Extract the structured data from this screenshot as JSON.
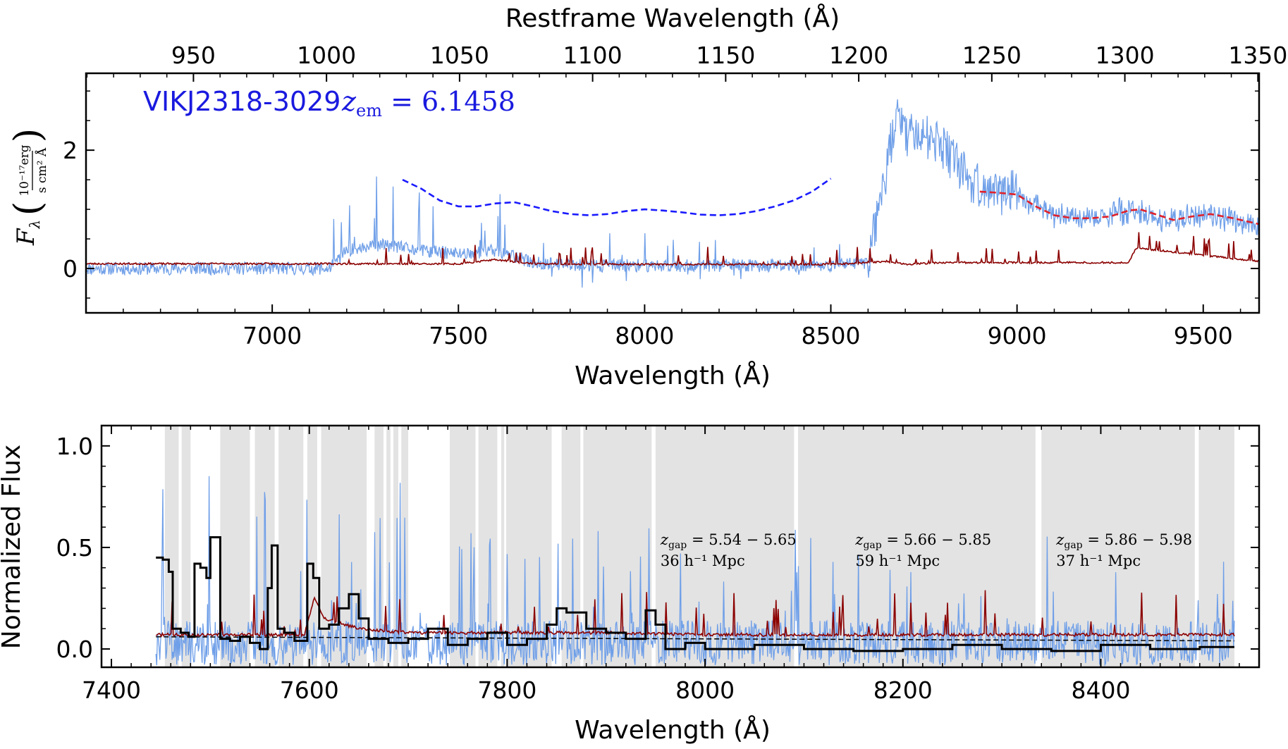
{
  "colors": {
    "flux": "#6f9fe8",
    "error": "#8b0000",
    "fit_blue": "#1a1aff",
    "fit_red": "#e0202a",
    "binned": "#000000",
    "gap_shade": "#e3e3e3",
    "title_color": "#1a1adf"
  },
  "chart_data": [
    {
      "type": "line",
      "title_object": "VIKJ2318-3029",
      "title_redshift": "z_em = 6.1458",
      "title_redshift_var": "z",
      "title_redshift_sub": "em",
      "title_redshift_value": " = 6.1458",
      "xlabel": "Wavelength (Å)",
      "xlabel_top": "Restframe Wavelength (Å)",
      "ylabel_var": "F",
      "ylabel_sub": "λ",
      "ylabel_num": "10⁻¹⁷erg",
      "ylabel_den": "s cm² Å",
      "xlim": [
        6500,
        9650
      ],
      "ylim": [
        -0.75,
        3.3
      ],
      "redshift": 6.1458,
      "x_ticks": [
        7000,
        7500,
        8000,
        8500,
        9000,
        9500
      ],
      "x_top_ticks": [
        950,
        1000,
        1050,
        1100,
        1150,
        1200,
        1250,
        1300,
        1350
      ],
      "y_ticks": [
        0,
        2
      ],
      "series": [
        {
          "role": "flux",
          "points": [
            [
              6500,
              0.0
            ],
            [
              7150,
              0.0
            ],
            [
              7200,
              0.3
            ],
            [
              7300,
              0.4
            ],
            [
              7400,
              0.3
            ],
            [
              7500,
              0.25
            ],
            [
              7600,
              0.3
            ],
            [
              7700,
              0.1
            ],
            [
              7800,
              0.05
            ],
            [
              8000,
              0.05
            ],
            [
              8300,
              0.05
            ],
            [
              8500,
              0.05
            ],
            [
              8600,
              0.1
            ],
            [
              8640,
              1.4
            ],
            [
              8660,
              2.1
            ],
            [
              8680,
              2.6
            ],
            [
              8700,
              2.3
            ],
            [
              8750,
              2.3
            ],
            [
              8800,
              2.0
            ],
            [
              8850,
              1.7
            ],
            [
              8900,
              1.35
            ],
            [
              8950,
              1.3
            ],
            [
              9000,
              1.25
            ],
            [
              9050,
              1.05
            ],
            [
              9100,
              0.9
            ],
            [
              9150,
              0.85
            ],
            [
              9200,
              0.85
            ],
            [
              9250,
              0.9
            ],
            [
              9300,
              1.0
            ],
            [
              9350,
              0.9
            ],
            [
              9400,
              0.8
            ],
            [
              9500,
              0.9
            ],
            [
              9600,
              0.8
            ],
            [
              9650,
              0.75
            ]
          ]
        },
        {
          "role": "error",
          "points": [
            [
              6500,
              0.08
            ],
            [
              7000,
              0.08
            ],
            [
              7500,
              0.08
            ],
            [
              7600,
              0.15
            ],
            [
              7700,
              0.08
            ],
            [
              8000,
              0.07
            ],
            [
              8500,
              0.07
            ],
            [
              8650,
              0.12
            ],
            [
              8700,
              0.07
            ],
            [
              8800,
              0.1
            ],
            [
              9000,
              0.1
            ],
            [
              9300,
              0.1
            ],
            [
              9320,
              0.35
            ],
            [
              9650,
              0.12
            ]
          ]
        },
        {
          "role": "continuum_blue",
          "points": [
            [
              7350,
              1.5
            ],
            [
              7400,
              1.35
            ],
            [
              7450,
              1.15
            ],
            [
              7500,
              1.05
            ],
            [
              7550,
              1.05
            ],
            [
              7600,
              1.1
            ],
            [
              7650,
              1.12
            ],
            [
              7700,
              1.05
            ],
            [
              7750,
              0.97
            ],
            [
              7800,
              0.92
            ],
            [
              7850,
              0.9
            ],
            [
              7900,
              0.92
            ],
            [
              7950,
              0.97
            ],
            [
              8000,
              1.0
            ],
            [
              8050,
              0.98
            ],
            [
              8100,
              0.95
            ],
            [
              8150,
              0.91
            ],
            [
              8200,
              0.9
            ],
            [
              8250,
              0.92
            ],
            [
              8300,
              0.97
            ],
            [
              8350,
              1.05
            ],
            [
              8400,
              1.15
            ],
            [
              8450,
              1.3
            ],
            [
              8500,
              1.52
            ]
          ]
        },
        {
          "role": "continuum_red",
          "points": [
            [
              8900,
              1.3
            ],
            [
              8950,
              1.28
            ],
            [
              9000,
              1.25
            ],
            [
              9050,
              1.05
            ],
            [
              9100,
              0.9
            ],
            [
              9150,
              0.85
            ],
            [
              9200,
              0.85
            ],
            [
              9250,
              0.88
            ],
            [
              9300,
              0.98
            ],
            [
              9330,
              1.0
            ],
            [
              9370,
              0.92
            ],
            [
              9420,
              0.82
            ],
            [
              9470,
              0.88
            ],
            [
              9520,
              0.92
            ],
            [
              9580,
              0.85
            ],
            [
              9650,
              0.75
            ]
          ]
        }
      ]
    },
    {
      "type": "line",
      "xlabel": "Wavelength (Å)",
      "ylabel": "Normalized Flux",
      "xlim": [
        7390,
        8560
      ],
      "ylim": [
        -0.09,
        1.1
      ],
      "x_ticks": [
        7400,
        7600,
        7800,
        8000,
        8200,
        8400
      ],
      "y_ticks": [
        0.0,
        0.5,
        1.0
      ],
      "y_tick_labels": [
        "0.0",
        "0.5",
        "1.0"
      ],
      "shaded_regions": [
        [
          7454,
          7468
        ],
        [
          7471,
          7480
        ],
        [
          7510,
          7540
        ],
        [
          7545,
          7565
        ],
        [
          7569,
          7594
        ],
        [
          7598,
          7608
        ],
        [
          7612,
          7658
        ],
        [
          7666,
          7675
        ],
        [
          7678,
          7682
        ],
        [
          7685,
          7690
        ],
        [
          7693,
          7700
        ],
        [
          7742,
          7768
        ],
        [
          7771,
          7790
        ],
        [
          7794,
          7797
        ],
        [
          7799,
          7845
        ],
        [
          7855,
          7874
        ],
        [
          7877,
          7946
        ],
        [
          7950,
          8090
        ],
        [
          8094,
          8334
        ],
        [
          8340,
          8495
        ],
        [
          8499,
          8535
        ]
      ],
      "annotations": [
        {
          "line1_var": "z",
          "line1_sub": "gap",
          "line1_value": " = 5.54 − 5.65",
          "line2": "36 h⁻¹ Mpc",
          "x": 7955
        },
        {
          "line1_var": "z",
          "line1_sub": "gap",
          "line1_value": " = 5.66 − 5.85",
          "line2": "59 h⁻¹ Mpc",
          "x": 8152
        },
        {
          "line1_var": "z",
          "line1_sub": "gap",
          "line1_value": " = 5.86 − 5.98",
          "line2": "37 h⁻¹ Mpc",
          "x": 8355
        }
      ],
      "series": [
        {
          "role": "binned_flux",
          "points": [
            [
              7445,
              0.45
            ],
            [
              7452,
              0.44
            ],
            [
              7458,
              0.38
            ],
            [
              7462,
              0.1
            ],
            [
              7470,
              0.08
            ],
            [
              7478,
              0.06
            ],
            [
              7484,
              0.42
            ],
            [
              7490,
              0.4
            ],
            [
              7496,
              0.35
            ],
            [
              7500,
              0.55
            ],
            [
              7505,
              0.55
            ],
            [
              7510,
              0.05
            ],
            [
              7520,
              0.04
            ],
            [
              7530,
              0.06
            ],
            [
              7540,
              0.03
            ],
            [
              7550,
              0.0
            ],
            [
              7558,
              0.3
            ],
            [
              7562,
              0.51
            ],
            [
              7568,
              0.1
            ],
            [
              7575,
              0.08
            ],
            [
              7585,
              0.04
            ],
            [
              7598,
              0.42
            ],
            [
              7604,
              0.35
            ],
            [
              7610,
              0.1
            ],
            [
              7620,
              0.12
            ],
            [
              7630,
              0.2
            ],
            [
              7640,
              0.27
            ],
            [
              7650,
              0.15
            ],
            [
              7660,
              0.05
            ],
            [
              7680,
              0.03
            ],
            [
              7700,
              0.05
            ],
            [
              7720,
              0.1
            ],
            [
              7740,
              0.02
            ],
            [
              7760,
              0.05
            ],
            [
              7780,
              0.08
            ],
            [
              7800,
              0.02
            ],
            [
              7820,
              0.05
            ],
            [
              7840,
              0.12
            ],
            [
              7850,
              0.2
            ],
            [
              7860,
              0.18
            ],
            [
              7880,
              0.1
            ],
            [
              7900,
              0.08
            ],
            [
              7920,
              0.05
            ],
            [
              7940,
              0.19
            ],
            [
              7950,
              0.12
            ],
            [
              7960,
              0.0
            ],
            [
              7980,
              0.03
            ],
            [
              8000,
              0.0
            ],
            [
              8050,
              0.02
            ],
            [
              8100,
              0.0
            ],
            [
              8150,
              -0.01
            ],
            [
              8200,
              0.0
            ],
            [
              8250,
              0.02
            ],
            [
              8300,
              0.0
            ],
            [
              8350,
              -0.01
            ],
            [
              8400,
              0.02
            ],
            [
              8450,
              0.0
            ],
            [
              8500,
              0.01
            ],
            [
              8535,
              0.01
            ]
          ]
        },
        {
          "role": "error_norm",
          "points": [
            [
              7445,
              0.07
            ],
            [
              7550,
              0.07
            ],
            [
              7595,
              0.07
            ],
            [
              7605,
              0.25
            ],
            [
              7615,
              0.15
            ],
            [
              7650,
              0.1
            ],
            [
              7700,
              0.08
            ],
            [
              7800,
              0.08
            ],
            [
              7900,
              0.08
            ],
            [
              8000,
              0.07
            ],
            [
              8100,
              0.07
            ],
            [
              8200,
              0.07
            ],
            [
              8300,
              0.07
            ],
            [
              8400,
              0.07
            ],
            [
              8535,
              0.07
            ]
          ]
        },
        {
          "role": "mean_level",
          "points": [
            [
              7445,
              0.06
            ],
            [
              8535,
              0.04
            ]
          ]
        }
      ]
    }
  ]
}
